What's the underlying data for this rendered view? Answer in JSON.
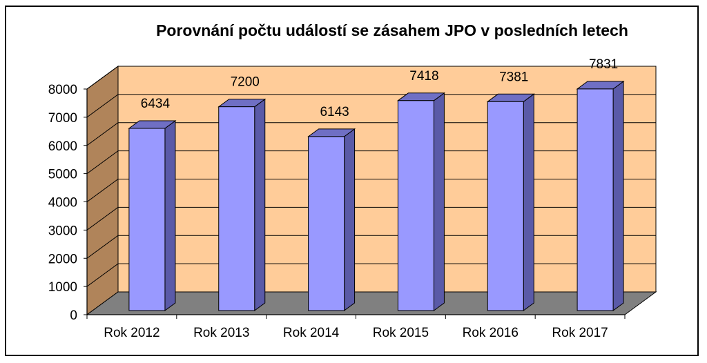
{
  "chart_data": {
    "type": "bar",
    "title": "Porovnání počtu událostí se zásahem JPO v posledních letech",
    "categories": [
      "Rok 2012",
      "Rok 2013",
      "Rok 2014",
      "Rok 2015",
      "Rok 2016",
      "Rok 2017"
    ],
    "values": [
      6434,
      7200,
      6143,
      7418,
      7381,
      7831
    ],
    "ylim": [
      0,
      8000
    ],
    "yticks": [
      0,
      1000,
      2000,
      3000,
      4000,
      5000,
      6000,
      7000,
      8000
    ],
    "xlabel": "",
    "ylabel": "",
    "grid": true,
    "legend": "none",
    "three_d": true,
    "colors": {
      "bar_front": "#9999ff",
      "bar_side": "#5a5aa8",
      "bar_top": "#6f6fc4",
      "back_wall": "#ffcc99",
      "side_wall": "#b0845a",
      "floor": "#808080"
    }
  }
}
